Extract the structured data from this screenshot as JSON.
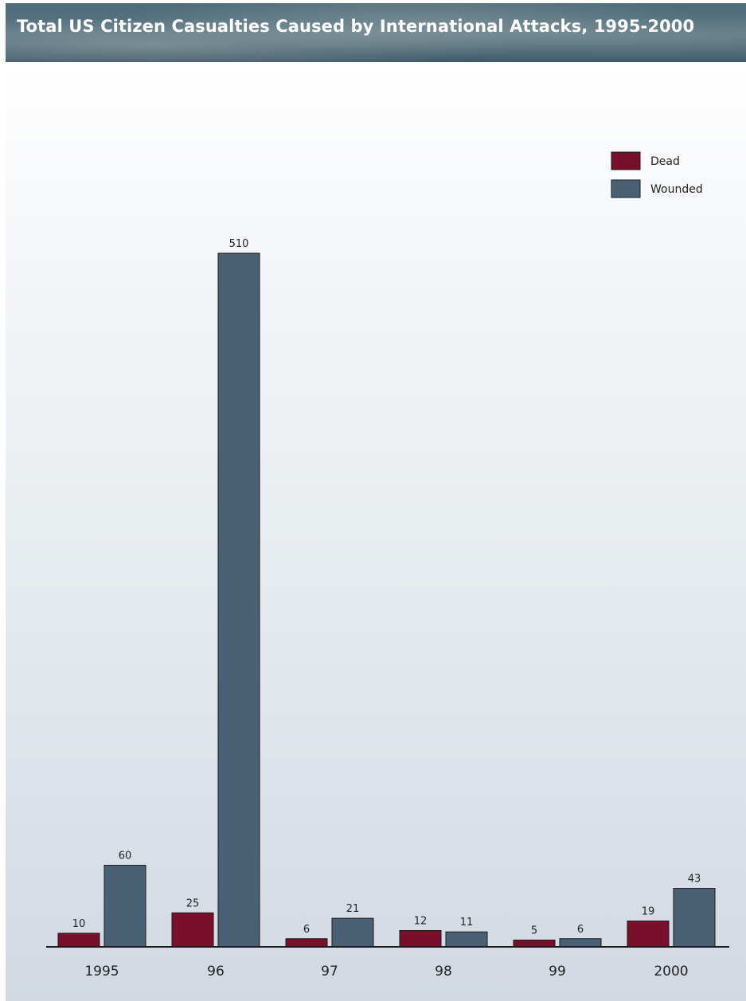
{
  "chart_data": {
    "type": "bar",
    "title": "Total US Citizen Casualties Caused by International Attacks, 1995-2000",
    "categories": [
      "1995",
      "96",
      "97",
      "98",
      "99",
      "2000"
    ],
    "series": [
      {
        "name": "Dead",
        "color": "#7a0f2c",
        "values": [
          10,
          25,
          6,
          12,
          5,
          19
        ]
      },
      {
        "name": "Wounded",
        "color": "#4a6175",
        "values": [
          60,
          510,
          21,
          11,
          6,
          43
        ]
      }
    ],
    "ylim": [
      0,
      510
    ],
    "legend_position": "top-right",
    "grid": false
  }
}
